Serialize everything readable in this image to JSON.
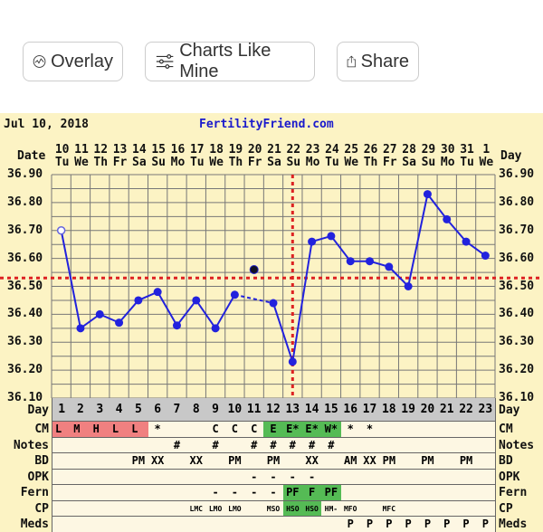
{
  "toolbar": {
    "overlay": "Overlay",
    "charts_like_mine": "Charts Like Mine",
    "share": "Share"
  },
  "header": {
    "date": "Jul 10, 2018",
    "site": "FertilityFriend.com"
  },
  "colors": {
    "line": "#2222dd",
    "coverline": "#dd2222",
    "red_cell": "#f08080",
    "green_cell": "#55bb55",
    "grid": "#666666"
  },
  "labels": {
    "date": "Date",
    "day": "Day",
    "cm": "CM",
    "notes": "Notes",
    "bd": "BD",
    "opk": "OPK",
    "fern": "Fern",
    "cp": "CP",
    "meds": "Meds"
  },
  "chart_data": {
    "type": "line",
    "dates": [
      "10",
      "11",
      "12",
      "13",
      "14",
      "15",
      "16",
      "17",
      "18",
      "19",
      "20",
      "21",
      "22",
      "23",
      "24",
      "25",
      "26",
      "27",
      "28",
      "29",
      "30",
      "31",
      "1"
    ],
    "weekdays": [
      "Tu",
      "We",
      "Th",
      "Fr",
      "Sa",
      "Su",
      "Mo",
      "Tu",
      "We",
      "Th",
      "Fr",
      "Sa",
      "Su",
      "Mo",
      "Tu",
      "We",
      "Th",
      "Fr",
      "Sa",
      "Su",
      "Mo",
      "Tu",
      "We"
    ],
    "days": [
      1,
      2,
      3,
      4,
      5,
      6,
      7,
      8,
      9,
      10,
      11,
      12,
      13,
      14,
      15,
      16,
      17,
      18,
      19,
      20,
      21,
      22,
      23
    ],
    "temps": [
      36.7,
      36.35,
      36.4,
      36.37,
      36.45,
      36.48,
      36.36,
      36.45,
      36.35,
      36.47,
      36.56,
      36.44,
      36.23,
      36.66,
      36.68,
      36.59,
      36.59,
      36.57,
      36.5,
      36.83,
      36.74,
      36.66,
      36.61
    ],
    "open_point_days": [
      1
    ],
    "excluded_days": [
      11
    ],
    "coverline": 36.53,
    "ovulation_day": 13,
    "ylim": [
      36.1,
      36.9
    ],
    "yticks": [
      "36.90",
      "36.80",
      "36.70",
      "36.60",
      "36.50",
      "36.40",
      "36.30",
      "36.20",
      "36.10"
    ],
    "grid": true
  },
  "rows": {
    "cm": [
      "L",
      "M",
      "H",
      "L",
      "L",
      "*",
      "",
      "",
      "C",
      "C",
      "C",
      "E",
      "E*",
      "E*",
      "W*",
      "*",
      "*",
      "",
      "",
      "",
      "",
      "",
      ""
    ],
    "cm_colors": [
      "red",
      "red",
      "red",
      "red",
      "red",
      "",
      "",
      "",
      "",
      "",
      "",
      "green",
      "green",
      "green",
      "green",
      "",
      "",
      "",
      "",
      "",
      "",
      "",
      ""
    ],
    "notes": [
      "",
      "",
      "",
      "",
      "",
      "",
      "#",
      "",
      "#",
      "",
      "#",
      "#",
      "#",
      "#",
      "#",
      "",
      "",
      "",
      "",
      "",
      "",
      "",
      ""
    ],
    "bd": [
      "",
      "",
      "",
      "",
      "PM",
      "XX",
      "",
      "XX",
      "",
      "PM",
      "",
      "PM",
      "",
      "XX",
      "",
      "AM",
      "XX",
      "PM",
      "",
      "PM",
      "",
      "PM",
      ""
    ],
    "opk": [
      "",
      "",
      "",
      "",
      "",
      "",
      "",
      "",
      "",
      "",
      "-",
      "-",
      "-",
      "-",
      "",
      "",
      "",
      "",
      "",
      "",
      "",
      "",
      ""
    ],
    "fern": [
      "",
      "",
      "",
      "",
      "",
      "",
      "",
      "",
      "-",
      "-",
      "-",
      "-",
      "PF",
      "F",
      "PF",
      "",
      "",
      "",
      "",
      "",
      "",
      "",
      ""
    ],
    "fern_colors": [
      "",
      "",
      "",
      "",
      "",
      "",
      "",
      "",
      "",
      "",
      "",
      "",
      "green",
      "green",
      "green",
      "",
      "",
      "",
      "",
      "",
      "",
      "",
      ""
    ],
    "cp": [
      "",
      "",
      "",
      "",
      "",
      "",
      "",
      "LMC",
      "LMO",
      "LMO",
      "",
      "MSO",
      "HSO",
      "HSO",
      "HM-",
      "MFO",
      "",
      "MFC",
      "",
      "",
      "",
      "",
      ""
    ],
    "cp_colors": [
      "",
      "",
      "",
      "",
      "",
      "",
      "",
      "",
      "",
      "",
      "",
      "",
      "green",
      "green",
      "",
      "",
      "",
      "",
      "",
      "",
      "",
      "",
      ""
    ],
    "meds": [
      "",
      "",
      "",
      "",
      "",
      "",
      "",
      "",
      "",
      "",
      "",
      "",
      "",
      "",
      "",
      "P",
      "P",
      "P",
      "P",
      "P",
      "P",
      "P",
      "P"
    ]
  }
}
